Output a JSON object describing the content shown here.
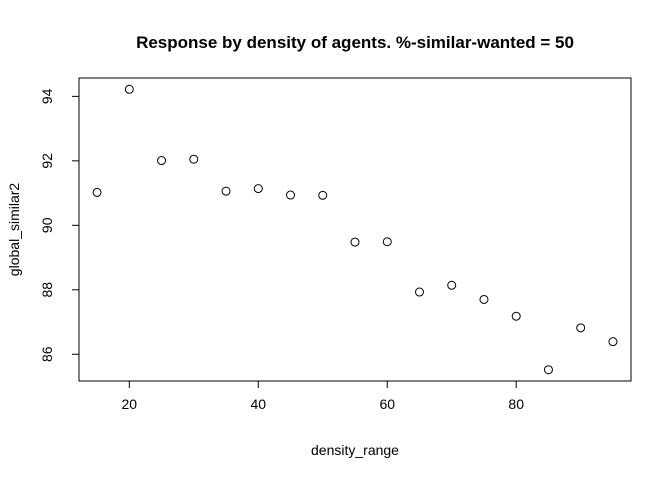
{
  "chart_data": {
    "type": "scatter",
    "title": "Response by density of agents. %-similar-wanted =  50",
    "xlabel": "density_range",
    "ylabel": "global_similar2",
    "xlim": [
      12.2,
      97.8
    ],
    "ylim": [
      85.17,
      94.57
    ],
    "xticks": [
      20,
      40,
      60,
      80
    ],
    "yticks": [
      86,
      88,
      90,
      92,
      94
    ],
    "grid": false,
    "legend": "none",
    "marker": "open-circle",
    "x": [
      15,
      20,
      25,
      30,
      35,
      40,
      45,
      50,
      55,
      60,
      65,
      70,
      75,
      80,
      85,
      90,
      95
    ],
    "y": [
      91.02,
      94.22,
      92.01,
      92.05,
      91.06,
      91.14,
      90.94,
      90.93,
      89.48,
      89.49,
      87.93,
      88.14,
      87.7,
      87.18,
      85.52,
      86.82,
      86.39
    ]
  }
}
